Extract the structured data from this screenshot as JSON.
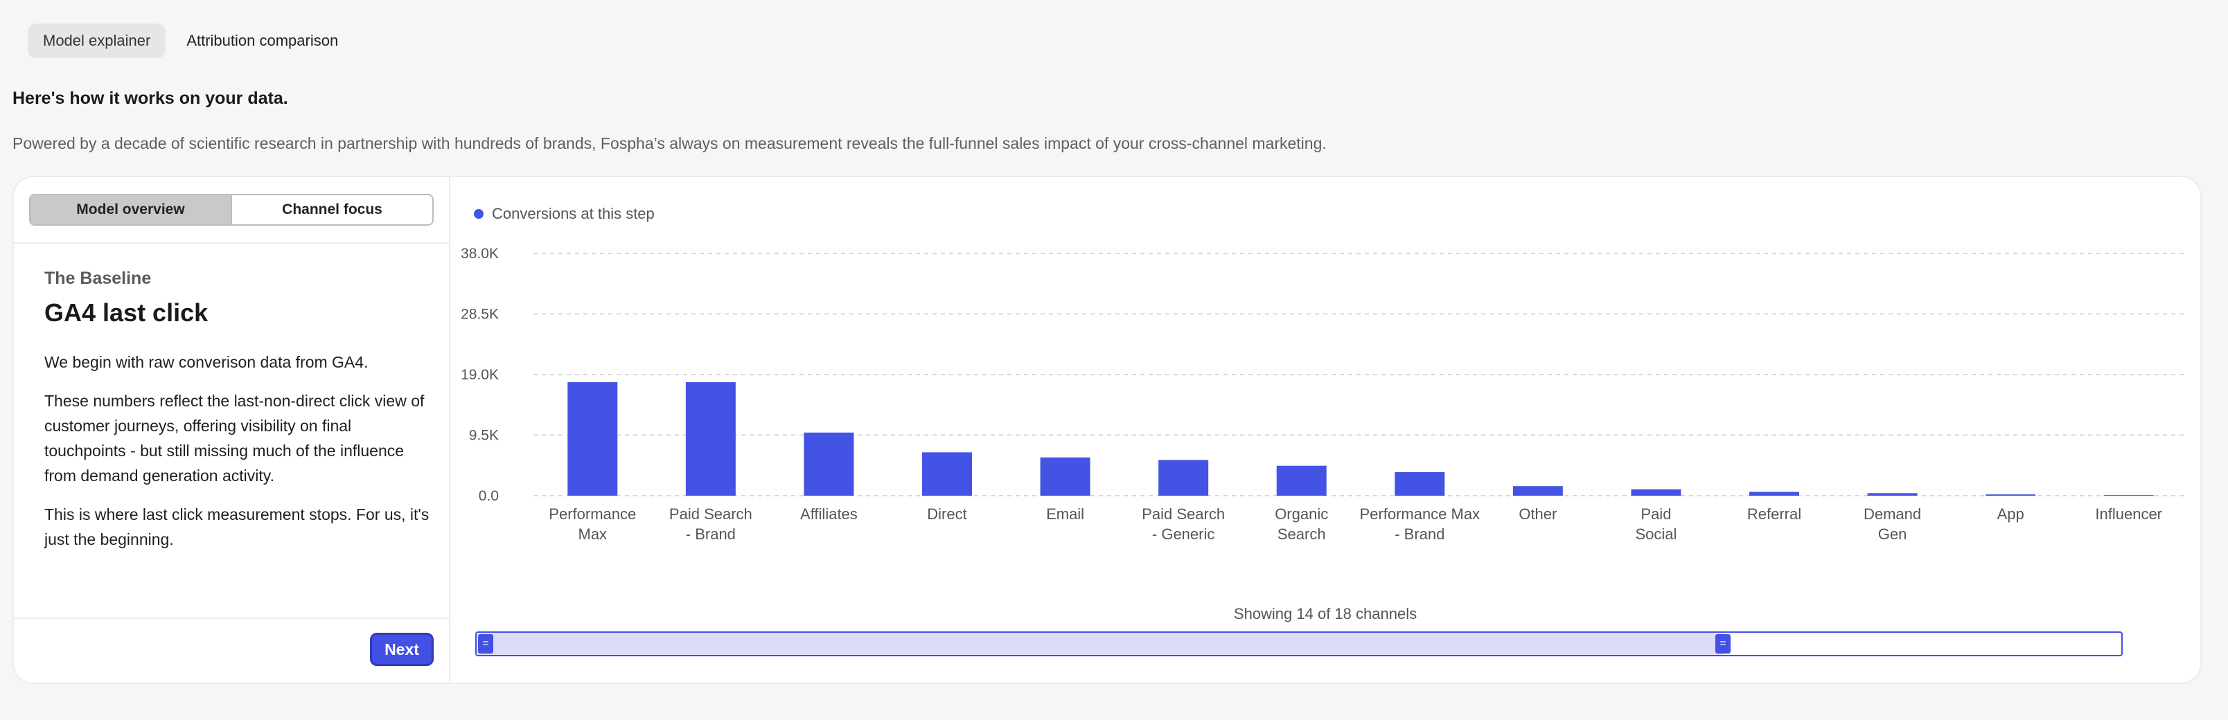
{
  "top_tabs": [
    {
      "label": "Model explainer"
    },
    {
      "label": "Attribution comparison"
    }
  ],
  "headline": "Here's how it works on your data.",
  "subtext": "Powered by a decade of scientific research in partnership with hundreds of brands, Fospha’s always on measurement reveals the full-funnel sales impact of your cross-channel marketing.",
  "panel": {
    "segments": [
      {
        "label": "Model overview"
      },
      {
        "label": "Channel focus"
      }
    ],
    "eyebrow": "The Baseline",
    "title": "GA4 last click",
    "paragraphs": [
      "We begin with raw converison data from GA4.",
      "These numbers reflect the last-non-direct click view of customer journeys, offering visibility on final touchpoints - but still missing much of the influence from demand generation activity.",
      "This is where last click measurement stops. For us, it's just the beginning."
    ],
    "next_label": "Next"
  },
  "colors": {
    "accent": "#4353e4"
  },
  "chart_data": {
    "type": "bar",
    "categories": [
      [
        "Performance",
        "Max"
      ],
      [
        "Paid Search",
        "- Brand"
      ],
      [
        "Affiliates"
      ],
      [
        "Direct"
      ],
      [
        "Email"
      ],
      [
        "Paid Search",
        "- Generic"
      ],
      [
        "Organic",
        "Search"
      ],
      [
        "Performance Max",
        "- Brand"
      ],
      [
        "Other"
      ],
      [
        "Paid",
        "Social"
      ],
      [
        "Referral"
      ],
      [
        "Demand",
        "Gen"
      ],
      [
        "App"
      ],
      [
        "Influencer"
      ]
    ],
    "series": [
      {
        "name": "Conversions at this step",
        "values": [
          17800,
          17800,
          9900,
          6800,
          6000,
          5600,
          4700,
          3700,
          1500,
          1000,
          600,
          400,
          200,
          100
        ]
      }
    ],
    "y_ticks": [
      "38.0K",
      "28.5K",
      "19.0K",
      "9.5K",
      "0.0"
    ],
    "y_tick_values": [
      38000,
      28500,
      19000,
      9500,
      0
    ],
    "ylim": [
      0,
      38000
    ],
    "grid": true,
    "legend": "top-left"
  },
  "footer": {
    "showing": "Showing 14 of 18 channels"
  }
}
